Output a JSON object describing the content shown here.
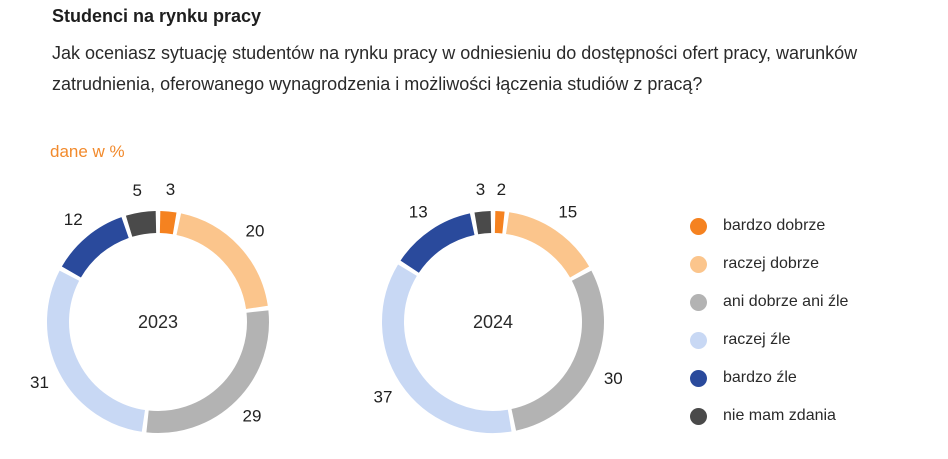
{
  "header": {
    "title": "Studenci na rynku pracy",
    "question": "Jak oceniasz sytuację studentów na rynku pracy w odniesieniu do dostępności ofert pracy, warunków zatrudnienia, oferowanego wynagrodzenia i możliwości łączenia studiów z pracą?",
    "units": "dane w %"
  },
  "chart_data": [
    {
      "type": "pie",
      "subtype": "donut",
      "center_label": "2023",
      "categories": [
        "bardzo dobrze",
        "raczej dobrze",
        "ani dobrze ani źle",
        "raczej źle",
        "bardzo źle",
        "nie mam zdania"
      ],
      "values": [
        3,
        20,
        29,
        31,
        12,
        5
      ],
      "colors": [
        "#f58220",
        "#fbc58c",
        "#b3b3b3",
        "#c8d8f4",
        "#2a4a9c",
        "#4a4a4a"
      ]
    },
    {
      "type": "pie",
      "subtype": "donut",
      "center_label": "2024",
      "categories": [
        "bardzo dobrze",
        "raczej dobrze",
        "ani dobrze ani źle",
        "raczej źle",
        "bardzo źle",
        "nie mam zdania"
      ],
      "values": [
        2,
        15,
        30,
        37,
        13,
        3
      ],
      "colors": [
        "#f58220",
        "#fbc58c",
        "#b3b3b3",
        "#c8d8f4",
        "#2a4a9c",
        "#4a4a4a"
      ]
    }
  ],
  "legend": [
    {
      "label": "bardzo dobrze",
      "color": "#f58220"
    },
    {
      "label": "raczej dobrze",
      "color": "#fbc58c"
    },
    {
      "label": "ani dobrze ani źle",
      "color": "#b3b3b3"
    },
    {
      "label": "raczej źle",
      "color": "#c8d8f4"
    },
    {
      "label": "bardzo źle",
      "color": "#2a4a9c"
    },
    {
      "label": "nie mam zdania",
      "color": "#4a4a4a"
    }
  ]
}
